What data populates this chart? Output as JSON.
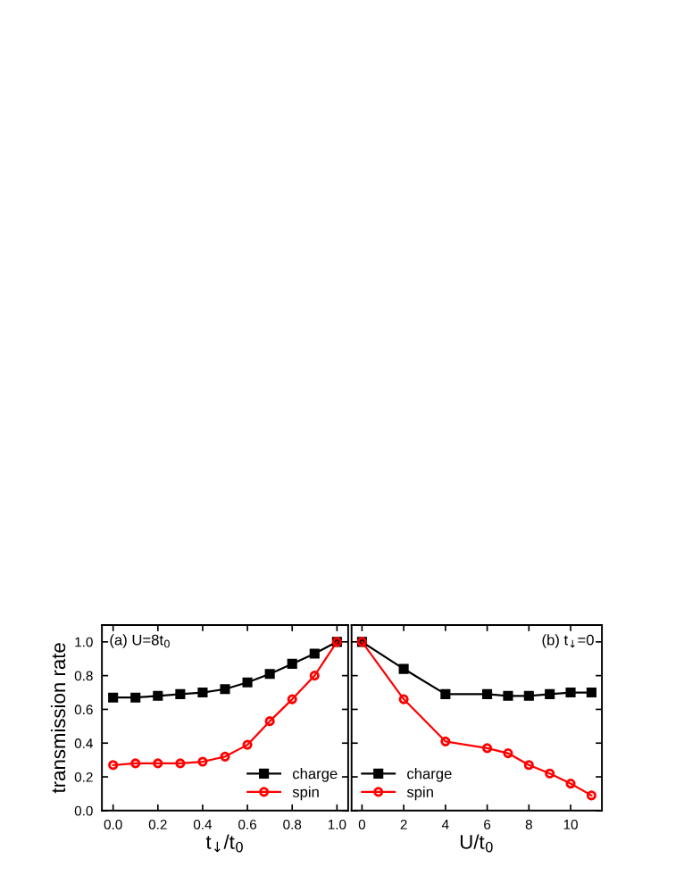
{
  "chart_data": [
    {
      "type": "line",
      "ylabel": "transmission rate",
      "xlabel": "t$_{↓}$/t$_{0}$",
      "annotations": [
        "(a) U=8t$_{0}$"
      ],
      "x": [
        0.0,
        0.1,
        0.2,
        0.3,
        0.4,
        0.5,
        0.6,
        0.7,
        0.8,
        0.9,
        1.0
      ],
      "xlim": [
        -0.05,
        1.05
      ],
      "xticks": [
        {
          "value": 0,
          "label": "0.0"
        },
        0.2,
        0.4,
        0.6,
        0.8,
        {
          "value": 1,
          "label": "1.0"
        }
      ],
      "ylim": [
        0,
        1.1
      ],
      "yticks": [
        {
          "value": 0,
          "label": "0.0"
        },
        0.2,
        0.4,
        0.6,
        0.8,
        {
          "value": 1,
          "label": "1.0"
        }
      ],
      "legend": "bottom right",
      "grid": false,
      "series": [
        {
          "name": "charge",
          "color": "#000000",
          "marker": "square",
          "values": [
            0.67,
            0.67,
            0.68,
            0.69,
            0.7,
            0.72,
            0.76,
            0.81,
            0.87,
            0.93,
            1.0
          ]
        },
        {
          "name": "spin",
          "color": "#ff0000",
          "marker": "circle",
          "values": [
            0.27,
            0.28,
            0.28,
            0.28,
            0.29,
            0.32,
            0.39,
            0.53,
            0.66,
            0.8,
            1.0
          ]
        }
      ]
    },
    {
      "type": "line",
      "xlabel": "U/t$_{0}$",
      "annotations": [
        "(b) t$_{↓}$=0"
      ],
      "x": [
        0,
        2,
        4,
        6,
        7,
        8,
        9,
        10,
        11
      ],
      "xlim": [
        -0.5,
        11.5
      ],
      "xticks": [
        0,
        2,
        4,
        6,
        8,
        10
      ],
      "ylim": [
        0,
        1.1
      ],
      "yticks": [
        0.0,
        0.2,
        0.4,
        0.6,
        0.8,
        1.0
      ],
      "tick_labels": "x",
      "legend": "bottom left",
      "grid": false,
      "series": [
        {
          "name": "charge",
          "color": "#000000",
          "marker": "square",
          "values": [
            1.0,
            0.84,
            0.69,
            0.69,
            0.68,
            0.68,
            0.69,
            0.7,
            0.7
          ]
        },
        {
          "name": "spin",
          "color": "#ff0000",
          "marker": "circle",
          "values": [
            1.0,
            0.66,
            0.41,
            0.37,
            0.34,
            0.27,
            0.22,
            0.16,
            0.09
          ]
        }
      ]
    }
  ]
}
